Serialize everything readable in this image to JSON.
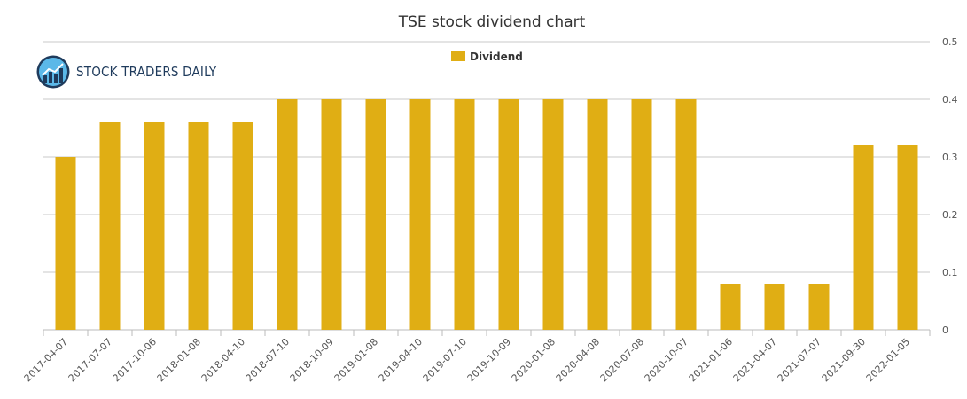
{
  "brand": {
    "text": "STOCK TRADERS DAILY"
  },
  "colors": {
    "bar": "#e0ae14",
    "grid": "#c8c8c8",
    "text": "#333333",
    "tick": "#555555"
  },
  "chart_data": {
    "type": "bar",
    "title": "TSE stock dividend chart",
    "xlabel": "",
    "ylabel": "",
    "ylim": [
      0,
      0.5
    ],
    "yticks": [
      "0",
      "0.1",
      "0.2",
      "0.3",
      "0.4",
      "0.5"
    ],
    "y_axis_side": "right",
    "grid": true,
    "legend": "top-center",
    "categories": [
      "2017-04-07",
      "2017-07-07",
      "2017-10-06",
      "2018-01-08",
      "2018-04-10",
      "2018-07-10",
      "2018-10-09",
      "2019-01-08",
      "2019-04-10",
      "2019-07-10",
      "2019-10-09",
      "2020-01-08",
      "2020-04-08",
      "2020-07-08",
      "2020-10-07",
      "2021-01-06",
      "2021-04-07",
      "2021-07-07",
      "2021-09-30",
      "2022-01-05"
    ],
    "series": [
      {
        "name": "Dividend",
        "values": [
          0.3,
          0.36,
          0.36,
          0.36,
          0.36,
          0.4,
          0.4,
          0.4,
          0.4,
          0.4,
          0.4,
          0.4,
          0.4,
          0.4,
          0.4,
          0.08,
          0.08,
          0.08,
          0.32,
          0.32
        ]
      }
    ]
  }
}
